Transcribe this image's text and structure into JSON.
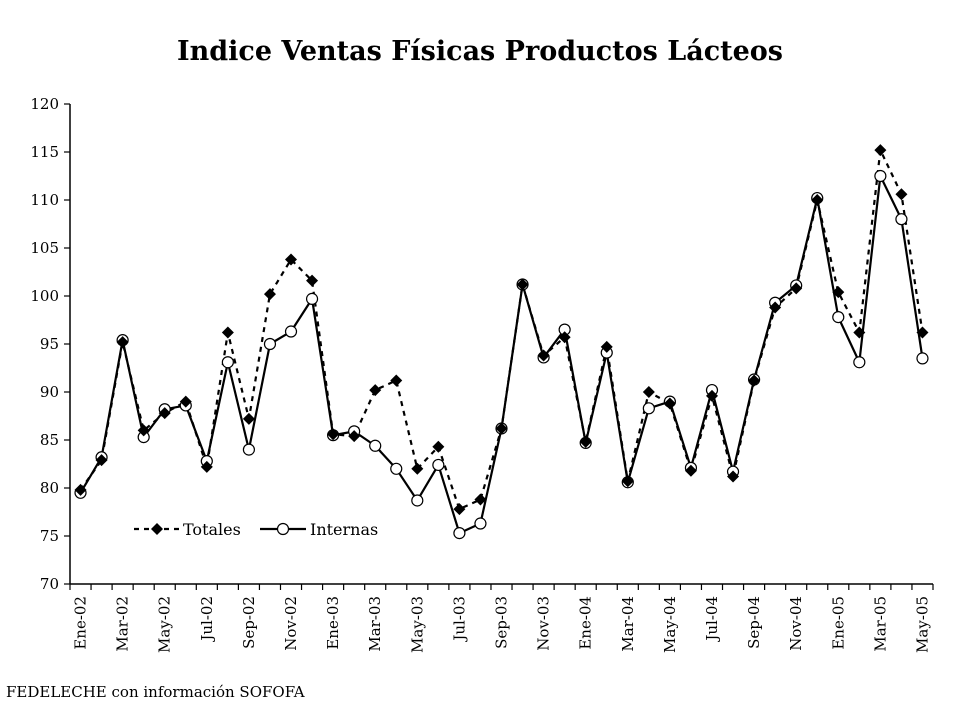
{
  "chart_data": {
    "type": "line",
    "title": "Indice Ventas Físicas Productos Lácteos",
    "source": "FEDELECHE con información SOFOFA",
    "xlabel": "",
    "ylabel": "",
    "ylim": [
      70,
      120
    ],
    "y_ticks": [
      70,
      75,
      80,
      85,
      90,
      95,
      100,
      105,
      110,
      115,
      120
    ],
    "grid": false,
    "legend_position": "lower-left",
    "x_tick_labels": [
      "Ene-02",
      "Mar-02",
      "May-02",
      "Jul-02",
      "Sep-02",
      "Nov-02",
      "Ene-03",
      "Mar-03",
      "May-03",
      "Jul-03",
      "Sep-03",
      "Nov-03",
      "Ene-04",
      "Mar-04",
      "May-04",
      "Jul-04",
      "Sep-04",
      "Nov-04",
      "Ene-05",
      "Mar-05",
      "May-05"
    ],
    "categories": [
      "Ene-02",
      "Feb-02",
      "Mar-02",
      "Abr-02",
      "May-02",
      "Jun-02",
      "Jul-02",
      "Ago-02",
      "Sep-02",
      "Oct-02",
      "Nov-02",
      "Dic-02",
      "Ene-03",
      "Feb-03",
      "Mar-03",
      "Abr-03",
      "May-03",
      "Jun-03",
      "Jul-03",
      "Ago-03",
      "Sep-03",
      "Oct-03",
      "Nov-03",
      "Dic-03",
      "Ene-04",
      "Feb-04",
      "Mar-04",
      "Abr-04",
      "May-04",
      "Jun-04",
      "Jul-04",
      "Ago-04",
      "Sep-04",
      "Oct-04",
      "Nov-04",
      "Dic-04",
      "Ene-05",
      "Feb-05",
      "Mar-05",
      "Abr-05",
      "May-05"
    ],
    "series": [
      {
        "name": "Totales",
        "style": "dashed",
        "marker": "diamond",
        "color": "#000000",
        "values": [
          79.8,
          82.9,
          95.2,
          86.0,
          87.8,
          89.0,
          82.2,
          96.2,
          87.2,
          100.2,
          103.8,
          101.6,
          85.6,
          85.4,
          90.2,
          91.2,
          82.0,
          84.3,
          77.8,
          78.8,
          86.2,
          101.2,
          93.8,
          95.7,
          84.8,
          94.7,
          80.7,
          90.0,
          88.8,
          81.8,
          89.6,
          81.2,
          91.2,
          98.8,
          100.8,
          110.0,
          100.4,
          96.2,
          115.2,
          110.6,
          96.2
        ]
      },
      {
        "name": "Internas",
        "style": "solid",
        "marker": "circle",
        "color": "#000000",
        "values": [
          79.5,
          83.2,
          95.4,
          85.3,
          88.2,
          88.6,
          82.8,
          93.1,
          84.0,
          95.0,
          96.3,
          99.7,
          85.5,
          85.9,
          84.4,
          82.0,
          78.7,
          82.4,
          75.3,
          76.3,
          86.2,
          101.2,
          93.6,
          96.5,
          84.7,
          94.1,
          80.6,
          88.3,
          89.0,
          82.1,
          90.2,
          81.7,
          91.3,
          99.3,
          101.1,
          110.2,
          97.8,
          93.1,
          112.5,
          108.0,
          93.5
        ]
      }
    ]
  }
}
